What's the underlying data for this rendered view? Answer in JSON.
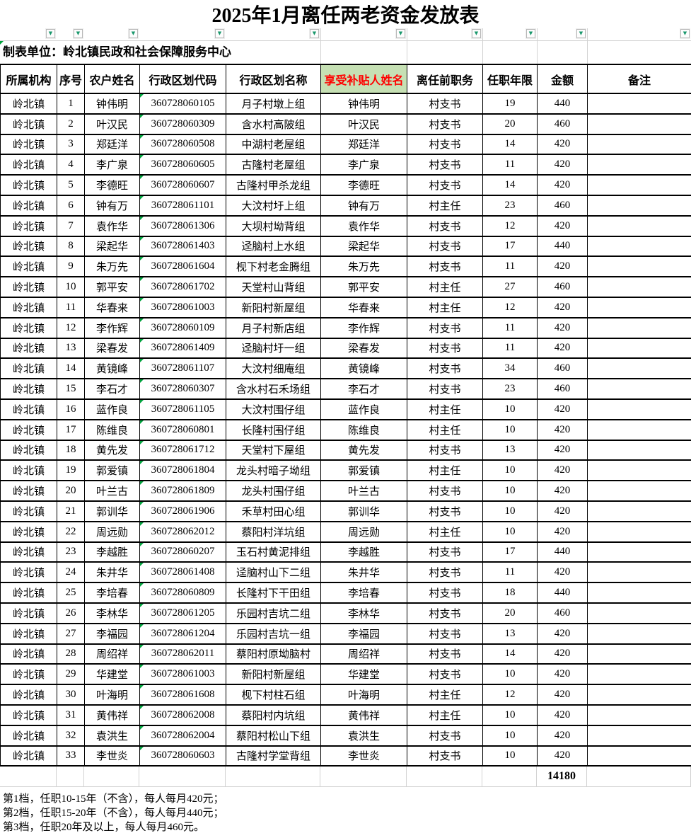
{
  "app": {
    "title": "2025年1月离任两老资金发放表"
  },
  "toolbar": {
    "unit_label": "制表单位：岭北镇民政和社会保障服务中心",
    "filter_icon": "▼"
  },
  "table": {
    "columns": [
      "所属机构",
      "序号",
      "农户姓名",
      "行政区划代码",
      "行政区划名称",
      "享受补贴人姓名",
      "离任前职务",
      "任职年限",
      "金额",
      "备注"
    ],
    "highlight_column_index": 5,
    "rows": [
      [
        "岭北镇",
        "1",
        "钟伟明",
        "360728060105",
        "月子村墩上组",
        "钟伟明",
        "村支书",
        "19",
        "440",
        ""
      ],
      [
        "岭北镇",
        "2",
        "叶汉民",
        "360728060309",
        "含水村高陂组",
        "叶汉民",
        "村支书",
        "20",
        "460",
        ""
      ],
      [
        "岭北镇",
        "3",
        "郑廷洋",
        "360728060508",
        "中湖村老屋组",
        "郑廷洋",
        "村支书",
        "14",
        "420",
        ""
      ],
      [
        "岭北镇",
        "4",
        "李广泉",
        "360728060605",
        "古隆村老屋组",
        "李广泉",
        "村支书",
        "11",
        "420",
        ""
      ],
      [
        "岭北镇",
        "5",
        "李德旺",
        "360728060607",
        "古隆村甲杀龙组",
        "李德旺",
        "村支书",
        "14",
        "420",
        ""
      ],
      [
        "岭北镇",
        "6",
        "钟有万",
        "360728061101",
        "大汶村圩上组",
        "钟有万",
        "村主任",
        "23",
        "460",
        ""
      ],
      [
        "岭北镇",
        "7",
        "袁作华",
        "360728061306",
        "大坝村坳背组",
        "袁作华",
        "村支书",
        "12",
        "420",
        ""
      ],
      [
        "岭北镇",
        "8",
        "梁起华",
        "360728061403",
        "迳脑村上水组",
        "梁起华",
        "村支书",
        "17",
        "440",
        ""
      ],
      [
        "岭北镇",
        "9",
        "朱万先",
        "360728061604",
        "枧下村老金腾组",
        "朱万先",
        "村支书",
        "11",
        "420",
        ""
      ],
      [
        "岭北镇",
        "10",
        "郭平安",
        "360728061702",
        "天堂村山背组",
        "郭平安",
        "村主任",
        "27",
        "460",
        ""
      ],
      [
        "岭北镇",
        "11",
        "华春来",
        "360728061003",
        "新阳村新屋组",
        "华春来",
        "村主任",
        "12",
        "420",
        ""
      ],
      [
        "岭北镇",
        "12",
        "李作辉",
        "360728060109",
        "月子村新店组",
        "李作辉",
        "村支书",
        "11",
        "420",
        ""
      ],
      [
        "岭北镇",
        "13",
        "梁春发",
        "360728061409",
        "迳脑村圩一组",
        "梁春发",
        "村支书",
        "11",
        "420",
        ""
      ],
      [
        "岭北镇",
        "14",
        "黄镜峰",
        "360728061107",
        "大汶村细庵组",
        "黄镜峰",
        "村支书",
        "34",
        "460",
        ""
      ],
      [
        "岭北镇",
        "15",
        "李石才",
        "360728060307",
        "含水村石禾场组",
        "李石才",
        "村支书",
        "23",
        "460",
        ""
      ],
      [
        "岭北镇",
        "16",
        "蓝作良",
        "360728061105",
        "大汶村围仔组",
        "蓝作良",
        "村主任",
        "10",
        "420",
        ""
      ],
      [
        "岭北镇",
        "17",
        "陈维良",
        "360728060801",
        "长隆村围仔组",
        "陈维良",
        "村主任",
        "10",
        "420",
        ""
      ],
      [
        "岭北镇",
        "18",
        "黄先发",
        "360728061712",
        "天堂村下屋组",
        "黄先发",
        "村支书",
        "13",
        "420",
        ""
      ],
      [
        "岭北镇",
        "19",
        "郭爱镇",
        "360728061804",
        "龙头村暗子坳组",
        "郭爱镇",
        "村主任",
        "10",
        "420",
        ""
      ],
      [
        "岭北镇",
        "20",
        "叶兰古",
        "360728061809",
        "龙头村围仔组",
        "叶兰古",
        "村支书",
        "10",
        "420",
        ""
      ],
      [
        "岭北镇",
        "21",
        "郭训华",
        "360728061906",
        "禾草村田心组",
        "郭训华",
        "村支书",
        "10",
        "420",
        ""
      ],
      [
        "岭北镇",
        "22",
        "周远勋",
        "360728062012",
        "蔡阳村洋坑组",
        "周远勋",
        "村主任",
        "10",
        "420",
        ""
      ],
      [
        "岭北镇",
        "23",
        "李越胜",
        "360728060207",
        "玉石村黄泥排组",
        "李越胜",
        "村支书",
        "17",
        "440",
        ""
      ],
      [
        "岭北镇",
        "24",
        "朱井华",
        "360728061408",
        "迳脑村山下二组",
        "朱井华",
        "村支书",
        "11",
        "420",
        ""
      ],
      [
        "岭北镇",
        "25",
        "李培春",
        "360728060809",
        "长隆村下干田组",
        "李培春",
        "村支书",
        "18",
        "440",
        ""
      ],
      [
        "岭北镇",
        "26",
        "李林华",
        "360728061205",
        "乐园村吉坑二组",
        "李林华",
        "村支书",
        "20",
        "460",
        ""
      ],
      [
        "岭北镇",
        "27",
        "李福园",
        "360728061204",
        "乐园村吉坑一组",
        "李福园",
        "村支书",
        "13",
        "420",
        ""
      ],
      [
        "岭北镇",
        "28",
        "周绍祥",
        "360728062011",
        "蔡阳村原坳脑村",
        "周绍祥",
        "村支书",
        "14",
        "420",
        ""
      ],
      [
        "岭北镇",
        "29",
        "华建堂",
        "360728061003",
        "新阳村新屋组",
        "华建堂",
        "村支书",
        "10",
        "420",
        ""
      ],
      [
        "岭北镇",
        "30",
        "叶海明",
        "360728061608",
        "枧下村柱石组",
        "叶海明",
        "村主任",
        "12",
        "420",
        ""
      ],
      [
        "岭北镇",
        "31",
        "黄伟祥",
        "360728062008",
        "蔡阳村内坑组",
        "黄伟祥",
        "村主任",
        "10",
        "420",
        ""
      ],
      [
        "岭北镇",
        "32",
        "袁洪生",
        "360728062004",
        "蔡阳村松山下组",
        "袁洪生",
        "村支书",
        "10",
        "420",
        ""
      ],
      [
        "岭北镇",
        "33",
        "李世炎",
        "360728060603",
        "古隆村学堂背组",
        "李世炎",
        "村支书",
        "10",
        "420",
        ""
      ]
    ],
    "total_label": "14180"
  },
  "notes": [
    "第1档，任职10-15年（不含），每人每月420元；",
    "第2档，任职15-20年（不含），每人每月440元；",
    "第3档，任职20年及以上，每人每月460元。"
  ],
  "colors": {
    "highlight_bg": "#c6e0b4",
    "highlight_text": "#ff0000",
    "filter_arrow": "#18976b",
    "corner_triangle": "#00a33d",
    "grid_faint": "#d2d2d2"
  }
}
